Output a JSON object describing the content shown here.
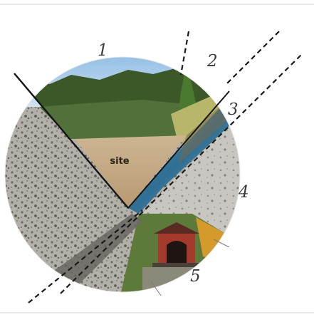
{
  "diagram": {
    "site_label": "site",
    "callouts": [
      "1",
      "2",
      "3",
      "4",
      "5"
    ],
    "colors": {
      "sky": "#9ec4e6",
      "forest": "#3f5a2a",
      "site_ground": "#c9b08a",
      "river": "#3d7fa8",
      "floodplain_gravel": "#a9a6a0",
      "covered_bridge": "#a43a2c",
      "boundary_line": "#1a1a1a"
    }
  }
}
